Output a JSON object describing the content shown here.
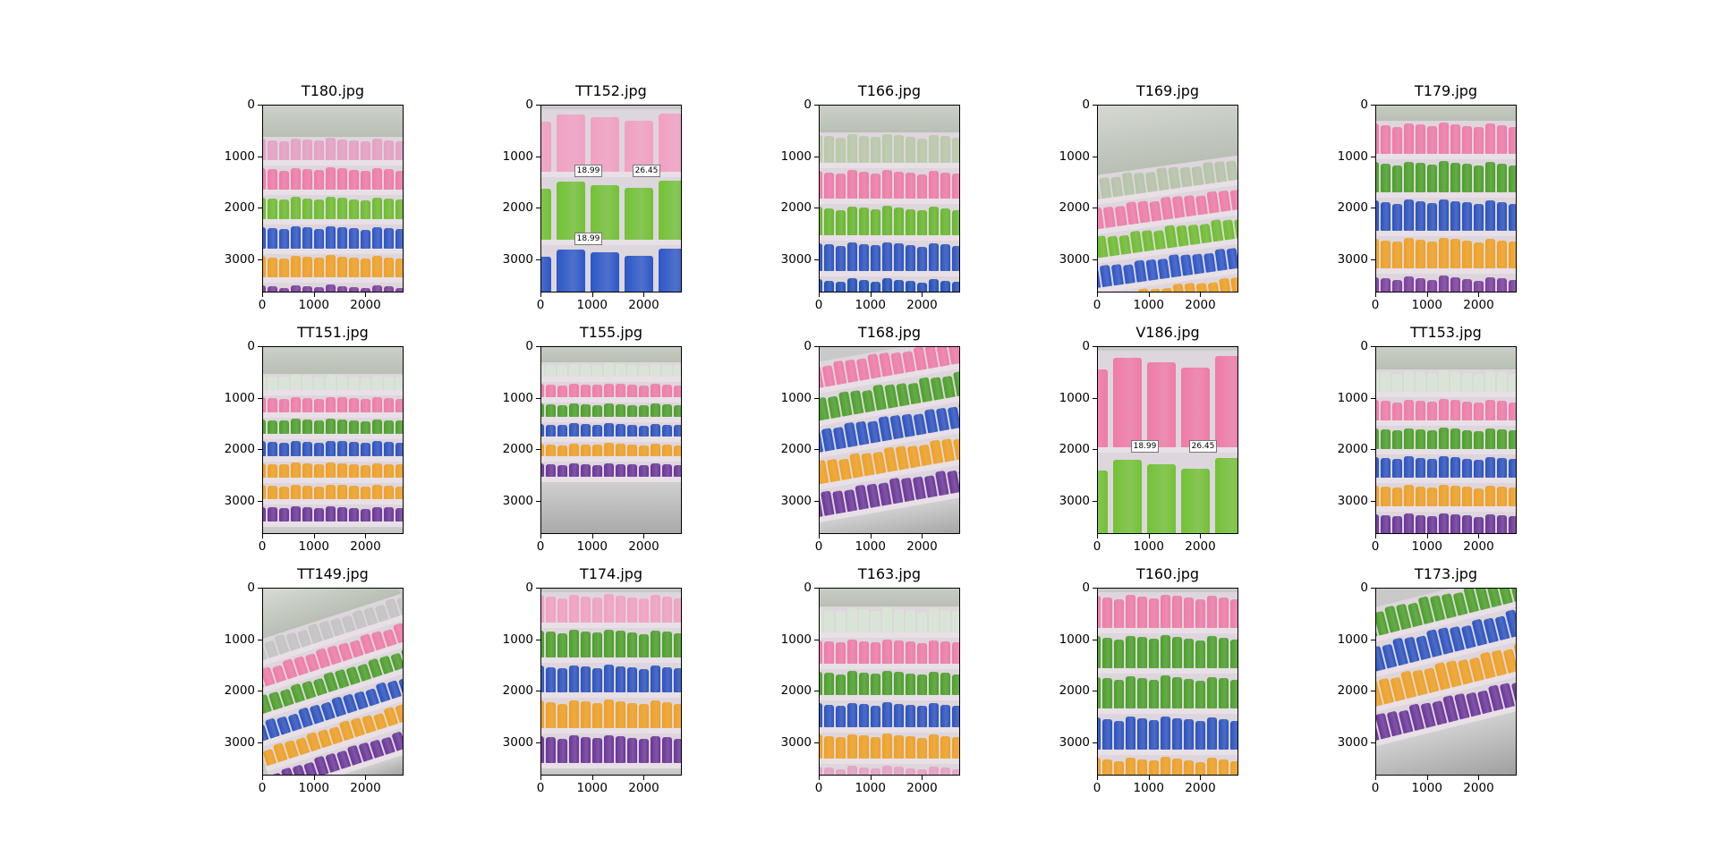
{
  "figure": {
    "subplots": [
      {
        "title": "T180.jpg",
        "scene": {
          "rows": [
            "#e6a0c2",
            "#f079a8",
            "#6cbd2c",
            "#2b54c6",
            "#f0a020",
            "#7a3d9c"
          ],
          "tilt": 0,
          "ceiling": 0.12,
          "floor": 0
        }
      },
      {
        "title": "TT152.jpg",
        "scene": {
          "rows": [
            "#f2a0c3",
            "#72c235",
            "#2c57c8"
          ],
          "tilt": 0,
          "ceiling": 0,
          "floor": 0,
          "closeup": true,
          "prices": [
            "18.99",
            "26.45",
            "18.99",
            "18.99"
          ]
        }
      },
      {
        "title": "T166.jpg",
        "scene": {
          "rows": [
            "#b9c9a8",
            "#f07aa8",
            "#66b82a",
            "#2a52c0",
            "#1f4fb8"
          ],
          "tilt": 0,
          "ceiling": 0.1,
          "floor": 0
        }
      },
      {
        "title": "T169.jpg",
        "scene": {
          "rows": [
            "#b5c4a8",
            "#f07aa8",
            "#6cbd2c",
            "#2b54c6",
            "#f0a020"
          ],
          "tilt": -8,
          "ceiling": 0.25,
          "floor": 0
        }
      },
      {
        "title": "T179.jpg",
        "scene": {
          "rows": [
            "#f07aa8",
            "#4aa028",
            "#2a52c0",
            "#f0a020",
            "#7a3d9c"
          ],
          "tilt": 0,
          "ceiling": 0.05,
          "floor": 0
        }
      },
      {
        "title": "TT151.jpg",
        "scene": {
          "rows": [
            "#d8e6d6",
            "#f07aa8",
            "#4aa028",
            "#2a52c0",
            "#f0a020",
            "#f0a020",
            "#6a3598"
          ],
          "tilt": 0,
          "ceiling": 0.1,
          "floor": 0.12
        }
      },
      {
        "title": "T155.jpg",
        "scene": {
          "rows": [
            "#d8e6d6",
            "#f07aa8",
            "#4aa028",
            "#2a52c0",
            "#f0a020",
            "#6a3598"
          ],
          "tilt": 0,
          "ceiling": 0.05,
          "floor": 0.32
        }
      },
      {
        "title": "T168.jpg",
        "scene": {
          "rows": [
            "#f07aa8",
            "#4aa028",
            "#2a52c0",
            "#f0a020",
            "#6a3598"
          ],
          "tilt": -10,
          "ceiling": 0,
          "floor": 0.2
        }
      },
      {
        "title": "V186.jpg",
        "scene": {
          "rows": [
            "#f07aa8",
            "#72c235"
          ],
          "tilt": 0,
          "ceiling": 0,
          "floor": 0,
          "closeup": true,
          "prices": [
            "18.99",
            "26.45"
          ]
        }
      },
      {
        "title": "TT153.jpg",
        "scene": {
          "rows": [
            "#d8e6d6",
            "#f07aa8",
            "#4aa028",
            "#2a52c0",
            "#f0a020",
            "#6a3598"
          ],
          "tilt": 0,
          "ceiling": 0.08,
          "floor": 0.06
        }
      },
      {
        "title": "TT149.jpg",
        "scene": {
          "rows": [
            "#c4c4c4",
            "#f07aa8",
            "#4aa028",
            "#2a52c0",
            "#f0a020",
            "#6a3598"
          ],
          "tilt": -18,
          "ceiling": 0.12,
          "floor": 0.1
        }
      },
      {
        "title": "T174.jpg",
        "scene": {
          "rows": [
            "#f2a0c3",
            "#4aa028",
            "#2a52c0",
            "#f0a020",
            "#6a3598"
          ],
          "tilt": 0,
          "ceiling": 0,
          "floor": 0.12
        }
      },
      {
        "title": "T163.jpg",
        "scene": {
          "rows": [
            "#d8e6d6",
            "#f07aa8",
            "#4aa028",
            "#2a52c0",
            "#f0a020",
            "#e6a0c2"
          ],
          "tilt": 0,
          "ceiling": 0.06,
          "floor": 0
        }
      },
      {
        "title": "T160.jpg",
        "scene": {
          "rows": [
            "#f07aa8",
            "#4aa028",
            "#4aa028",
            "#2a52c0",
            "#f0a020"
          ],
          "tilt": 0,
          "ceiling": 0,
          "floor": 0
        }
      },
      {
        "title": "T173.jpg",
        "scene": {
          "rows": [
            "#4aa028",
            "#2a52c0",
            "#f0a020",
            "#6a3598"
          ],
          "tilt": -14,
          "ceiling": 0,
          "floor": 0.3
        }
      }
    ],
    "axes": {
      "yticks": [
        "0",
        "1000",
        "2000",
        "3000"
      ],
      "xticks": [
        "0",
        "1000",
        "2000"
      ],
      "ytick_values": [
        0,
        1000,
        2000,
        3000
      ],
      "xtick_values": [
        0,
        1000,
        2000
      ],
      "xlim": [
        0,
        2736
      ],
      "ylim": [
        3648,
        0
      ]
    }
  }
}
